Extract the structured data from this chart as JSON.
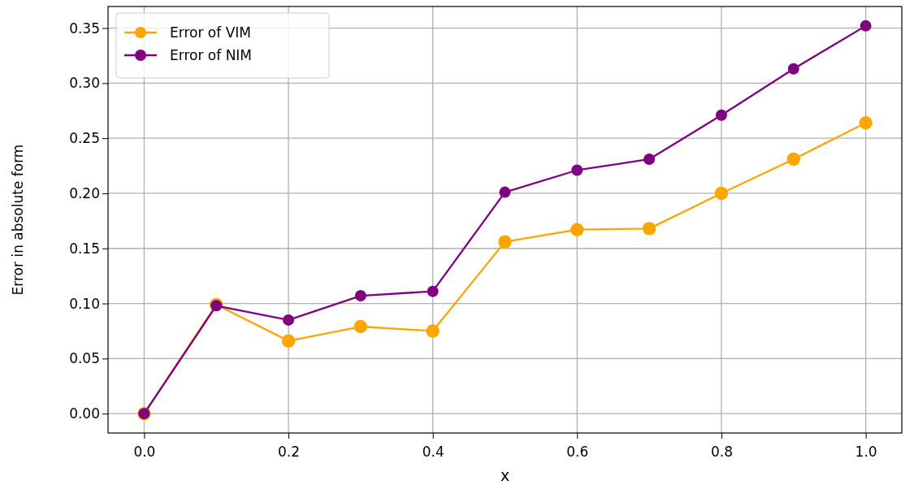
{
  "chart_data": {
    "type": "line",
    "xlabel": "x",
    "ylabel": "Error in absolute form",
    "x": [
      0,
      0.1,
      0.2,
      0.3,
      0.4,
      0.5,
      0.6,
      0.7,
      0.8,
      0.9,
      1.0
    ],
    "series": [
      {
        "name": "Error of VIM",
        "color": "#ffa500",
        "values": [
          0,
          0.099,
          0.066,
          0.079,
          0.075,
          0.156,
          0.167,
          0.168,
          0.2,
          0.231,
          0.264
        ]
      },
      {
        "name": "Error of NIM",
        "color": "#800080",
        "values": [
          0,
          0.098,
          0.085,
          0.107,
          0.111,
          0.201,
          0.221,
          0.231,
          0.271,
          0.313,
          0.352
        ]
      }
    ],
    "xlim": [
      -0.05,
      1.05
    ],
    "xticks": [
      {
        "value": 0,
        "label": "0.0"
      },
      {
        "value": 0.2,
        "label": "0.2"
      },
      {
        "value": 0.4,
        "label": "0.4"
      },
      {
        "value": 0.6,
        "label": "0.6"
      },
      {
        "value": 0.8,
        "label": "0.8"
      },
      {
        "value": 1.0,
        "label": "1.0"
      }
    ],
    "ylim": [
      -0.0176,
      0.3696
    ],
    "yticks": [
      {
        "value": 0,
        "label": "0.00"
      },
      {
        "value": 0.05,
        "label": "0.05"
      },
      {
        "value": 0.1,
        "label": "0.10"
      },
      {
        "value": 0.15,
        "label": "0.15"
      },
      {
        "value": 0.2,
        "label": "0.20"
      },
      {
        "value": 0.25,
        "label": "0.25"
      },
      {
        "value": 0.3,
        "label": "0.30"
      },
      {
        "value": 0.35,
        "label": "0.35"
      }
    ],
    "grid": true,
    "legend": "top left",
    "marker": "circle",
    "line_style": "solid"
  }
}
